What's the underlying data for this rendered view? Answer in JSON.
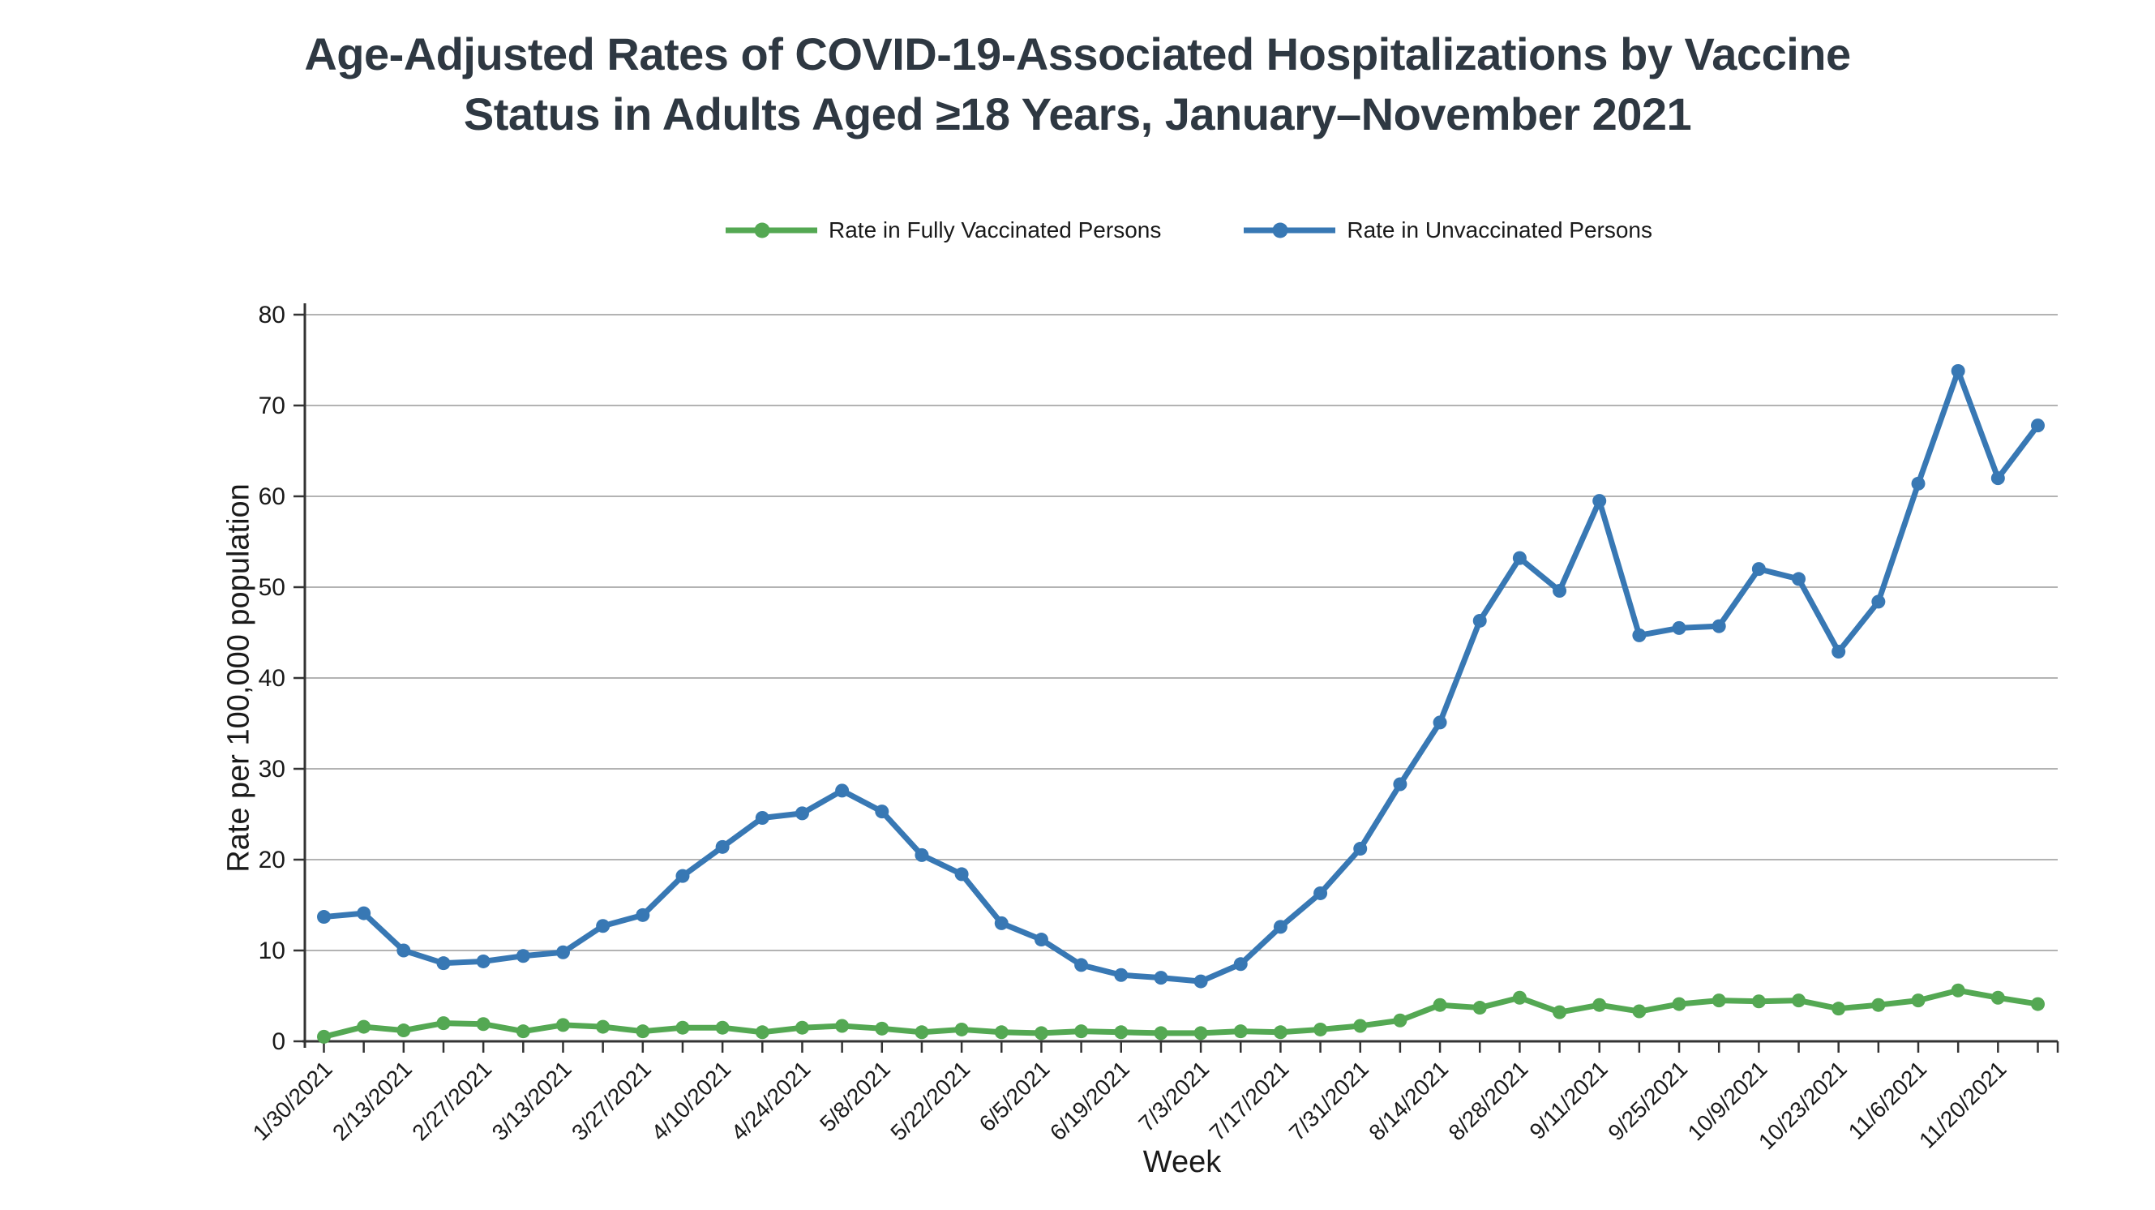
{
  "title": {
    "line1": "Age-Adjusted Rates of COVID-19-Associated Hospitalizations by Vaccine",
    "line2": "Status in Adults Aged ≥18 Years, January–November 2021"
  },
  "colors": {
    "fully_vaccinated": "#54a853",
    "unvaccinated": "#3878b4",
    "gridline": "#b3b3b3",
    "axis": "#333333",
    "title_text": "#2e3842",
    "tick_text": "#1a1a1a"
  },
  "chart_data": {
    "type": "line",
    "title": "Age-Adjusted Rates of COVID-19-Associated Hospitalizations by Vaccine Status in Adults Aged ≥18 Years, January–November 2021",
    "xlabel": "Week",
    "ylabel": "Rate per 100,000 population",
    "ylim": [
      0,
      80
    ],
    "ytick_step": 10,
    "grid": "horizontal",
    "legend_position": "top",
    "x": [
      "1/30/2021",
      "2/6/2021",
      "2/13/2021",
      "2/20/2021",
      "2/27/2021",
      "3/6/2021",
      "3/13/2021",
      "3/20/2021",
      "3/27/2021",
      "4/3/2021",
      "4/10/2021",
      "4/17/2021",
      "4/24/2021",
      "5/1/2021",
      "5/8/2021",
      "5/15/2021",
      "5/22/2021",
      "5/29/2021",
      "6/5/2021",
      "6/12/2021",
      "6/19/2021",
      "6/26/2021",
      "7/3/2021",
      "7/10/2021",
      "7/17/2021",
      "7/24/2021",
      "7/31/2021",
      "8/7/2021",
      "8/14/2021",
      "8/21/2021",
      "8/28/2021",
      "9/4/2021",
      "9/11/2021",
      "9/18/2021",
      "9/25/2021",
      "10/2/2021",
      "10/9/2021",
      "10/16/2021",
      "10/23/2021",
      "10/30/2021",
      "11/6/2021",
      "11/13/2021",
      "11/20/2021",
      "11/27/2021"
    ],
    "x_tick_labels": [
      "1/30/2021",
      "2/13/2021",
      "2/27/2021",
      "3/13/2021",
      "3/27/2021",
      "4/10/2021",
      "4/24/2021",
      "5/8/2021",
      "5/22/2021",
      "6/5/2021",
      "6/19/2021",
      "7/3/2021",
      "7/17/2021",
      "7/31/2021",
      "8/14/2021",
      "8/28/2021",
      "9/11/2021",
      "9/25/2021",
      "10/9/2021",
      "10/23/2021",
      "11/6/2021",
      "11/20/2021"
    ],
    "series": [
      {
        "name": "Rate in Fully Vaccinated Persons",
        "key": "fully-vaccinated",
        "color": "#54a853",
        "values": [
          0.5,
          1.6,
          1.2,
          2.0,
          1.9,
          1.1,
          1.8,
          1.6,
          1.1,
          1.5,
          1.5,
          1.0,
          1.5,
          1.7,
          1.4,
          1.0,
          1.3,
          1.0,
          0.9,
          1.1,
          1.0,
          0.9,
          0.9,
          1.1,
          1.0,
          1.3,
          1.7,
          2.3,
          4.0,
          3.7,
          4.8,
          3.2,
          4.0,
          3.3,
          4.1,
          4.5,
          4.4,
          4.5,
          3.6,
          4.0,
          4.5,
          5.6,
          4.8,
          4.1
        ]
      },
      {
        "name": "Rate in Unvaccinated Persons",
        "key": "unvaccinated",
        "color": "#3878b4",
        "values": [
          13.7,
          14.1,
          10.0,
          8.6,
          8.8,
          9.4,
          9.8,
          12.7,
          13.9,
          18.2,
          21.4,
          24.6,
          25.1,
          27.6,
          25.3,
          20.5,
          18.4,
          13.0,
          11.2,
          8.4,
          7.3,
          7.0,
          6.6,
          8.5,
          12.6,
          16.3,
          21.2,
          28.3,
          35.1,
          46.3,
          53.2,
          49.6,
          59.5,
          44.7,
          45.5,
          45.7,
          52.0,
          50.9,
          42.9,
          48.4,
          61.4,
          73.8,
          62.0,
          67.8
        ]
      }
    ]
  }
}
